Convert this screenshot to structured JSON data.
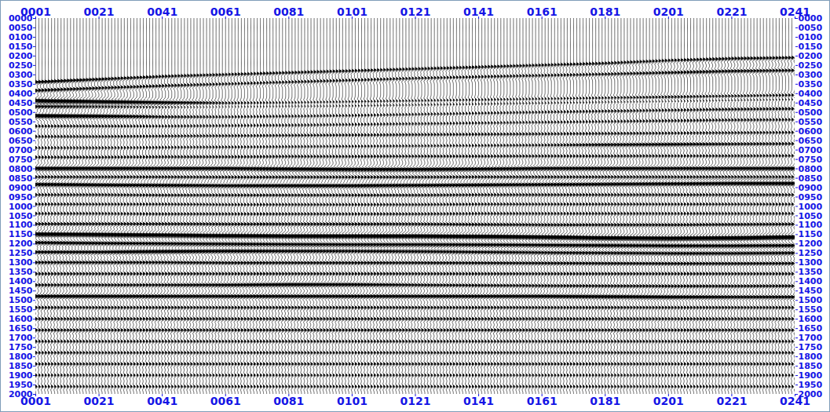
{
  "chart_data": {
    "type": "wiggle",
    "color": "#000000",
    "xlim": [
      1,
      241
    ],
    "ylim": [
      0,
      2000
    ],
    "xticks": [
      {
        "value": 1,
        "label": "0001"
      },
      {
        "value": 21,
        "label": "0021"
      },
      {
        "value": 41,
        "label": "0041"
      },
      {
        "value": 61,
        "label": "0061"
      },
      {
        "value": 81,
        "label": "0081"
      },
      {
        "value": 101,
        "label": "0101"
      },
      {
        "value": 121,
        "label": "0121"
      },
      {
        "value": 141,
        "label": "0141"
      },
      {
        "value": 161,
        "label": "0161"
      },
      {
        "value": 181,
        "label": "0181"
      },
      {
        "value": 201,
        "label": "0201"
      },
      {
        "value": 221,
        "label": "0221"
      },
      {
        "value": 241,
        "label": "0241"
      }
    ],
    "yticks": [
      {
        "value": 0,
        "label": "0000"
      },
      {
        "value": 50,
        "label": "0050"
      },
      {
        "value": 100,
        "label": "0100"
      },
      {
        "value": 150,
        "label": "0150"
      },
      {
        "value": 200,
        "label": "0200"
      },
      {
        "value": 250,
        "label": "0250"
      },
      {
        "value": 300,
        "label": "0300"
      },
      {
        "value": 350,
        "label": "0350"
      },
      {
        "value": 400,
        "label": "0400"
      },
      {
        "value": 450,
        "label": "0450"
      },
      {
        "value": 500,
        "label": "0500"
      },
      {
        "value": 550,
        "label": "0550"
      },
      {
        "value": 600,
        "label": "0600"
      },
      {
        "value": 650,
        "label": "0650"
      },
      {
        "value": 700,
        "label": "0700"
      },
      {
        "value": 750,
        "label": "0750"
      },
      {
        "value": 800,
        "label": "0800"
      },
      {
        "value": 850,
        "label": "0850"
      },
      {
        "value": 900,
        "label": "0900"
      },
      {
        "value": 950,
        "label": "0950"
      },
      {
        "value": 1000,
        "label": "1000"
      },
      {
        "value": 1050,
        "label": "1050"
      },
      {
        "value": 1100,
        "label": "1100"
      },
      {
        "value": 1150,
        "label": "1150"
      },
      {
        "value": 1200,
        "label": "1200"
      },
      {
        "value": 1250,
        "label": "1250"
      },
      {
        "value": 1300,
        "label": "1300"
      },
      {
        "value": 1350,
        "label": "1350"
      },
      {
        "value": 1400,
        "label": "1400"
      },
      {
        "value": 1450,
        "label": "1450"
      },
      {
        "value": 1500,
        "label": "1500"
      },
      {
        "value": 1550,
        "label": "1550"
      },
      {
        "value": 1600,
        "label": "1600"
      },
      {
        "value": 1650,
        "label": "1650"
      },
      {
        "value": 1700,
        "label": "1700"
      },
      {
        "value": 1750,
        "label": "1750"
      },
      {
        "value": 1800,
        "label": "1800"
      },
      {
        "value": 1850,
        "label": "1850"
      },
      {
        "value": 1900,
        "label": "1900"
      },
      {
        "value": 1950,
        "label": "1950"
      },
      {
        "value": 2000,
        "label": "2000"
      }
    ],
    "x": [
      1,
      21,
      41,
      61,
      81,
      101,
      121,
      141,
      161,
      181,
      201,
      221,
      241
    ],
    "first_arrival": [
      330,
      315,
      300,
      290,
      280,
      270,
      260,
      250,
      240,
      230,
      215,
      205,
      200
    ],
    "reflectors": [
      {
        "time": [
          340,
          325,
          310,
          300,
          290,
          280,
          270,
          260,
          250,
          240,
          225,
          215,
          210
        ],
        "amplitude": [
          1.2,
          1.0,
          0.8,
          0.8,
          0.8,
          0.8,
          0.8,
          0.8,
          0.8,
          0.8,
          0.8,
          0.9,
          0.9
        ]
      },
      {
        "time": [
          385,
          372,
          360,
          350,
          340,
          330,
          320,
          312,
          305,
          298,
          290,
          282,
          278
        ],
        "amplitude": [
          1.0,
          0.9,
          0.8,
          0.7,
          0.7,
          0.7,
          0.7,
          0.7,
          0.7,
          0.8,
          0.9,
          1.0,
          0.9
        ]
      },
      {
        "time": [
          440,
          445,
          450,
          452,
          450,
          445,
          440,
          435,
          430,
          425,
          420,
          415,
          410
        ],
        "amplitude": [
          2.6,
          2.3,
          1.6,
          0.9,
          0.7,
          0.7,
          0.7,
          0.7,
          0.7,
          0.8,
          1.0,
          0.9,
          0.9
        ]
      },
      {
        "time": [
          470,
          470,
          472,
          470,
          468,
          465,
          460,
          455,
          450,
          445,
          440,
          435,
          430
        ],
        "amplitude": [
          1.2,
          1.0,
          0.8,
          0.6,
          0.6,
          0.6,
          0.6,
          0.6,
          0.6,
          0.6,
          0.6,
          0.6,
          0.6
        ]
      },
      {
        "time": [
          520,
          522,
          525,
          525,
          522,
          518,
          512,
          506,
          500,
          495,
          490,
          485,
          482
        ],
        "amplitude": [
          2.2,
          1.6,
          0.8,
          0.6,
          0.6,
          0.6,
          0.6,
          0.6,
          0.6,
          0.7,
          0.7,
          0.8,
          0.8
        ]
      },
      {
        "time": [
          575,
          575,
          575,
          572,
          570,
          566,
          562,
          558,
          554,
          550,
          546,
          542,
          540
        ],
        "amplitude": [
          0.7,
          0.7,
          0.6,
          0.6,
          0.6,
          0.6,
          0.6,
          0.6,
          0.6,
          0.6,
          0.7,
          0.7,
          0.7
        ]
      },
      {
        "time": [
          630,
          630,
          628,
          626,
          624,
          622,
          620,
          618,
          616,
          614,
          612,
          610,
          608
        ],
        "amplitude": [
          0.7,
          0.7,
          0.7,
          0.7,
          0.7,
          0.7,
          0.7,
          0.7,
          0.7,
          0.7,
          0.7,
          0.7,
          0.7
        ]
      },
      {
        "time": [
          690,
          690,
          688,
          686,
          684,
          682,
          680,
          678,
          676,
          674,
          672,
          670,
          668
        ],
        "amplitude": [
          0.6,
          0.6,
          0.6,
          0.6,
          0.6,
          0.6,
          0.6,
          0.6,
          0.7,
          1.1,
          1.2,
          0.9,
          0.8
        ]
      },
      {
        "time": [
          740,
          740,
          738,
          738,
          736,
          736,
          735,
          735,
          734,
          734,
          733,
          733,
          732
        ],
        "amplitude": [
          0.7,
          0.7,
          0.7,
          0.7,
          0.7,
          0.7,
          0.7,
          0.7,
          0.7,
          0.7,
          0.7,
          0.7,
          0.7
        ]
      },
      {
        "time": [
          800,
          800,
          800,
          800,
          803,
          805,
          805,
          803,
          800,
          800,
          800,
          800,
          800
        ],
        "amplitude": [
          2.0,
          1.8,
          1.6,
          1.6,
          1.8,
          1.8,
          1.7,
          1.6,
          1.5,
          1.5,
          1.4,
          1.5,
          1.6
        ]
      },
      {
        "time": [
          845,
          845,
          845,
          846,
          846,
          846,
          846,
          845,
          845,
          845,
          845,
          845,
          845
        ],
        "amplitude": [
          0.8,
          0.8,
          0.8,
          0.8,
          0.8,
          0.8,
          0.8,
          0.8,
          0.8,
          0.8,
          0.8,
          0.8,
          0.8
        ]
      },
      {
        "time": [
          885,
          888,
          890,
          892,
          892,
          892,
          890,
          888,
          886,
          884,
          882,
          880,
          880
        ],
        "amplitude": [
          1.6,
          1.5,
          1.5,
          1.4,
          1.6,
          1.6,
          1.5,
          1.4,
          1.3,
          1.3,
          1.4,
          1.6,
          1.8
        ]
      },
      {
        "time": [
          940,
          940,
          942,
          942,
          942,
          942,
          942,
          940,
          940,
          940,
          940,
          940,
          940
        ],
        "amplitude": [
          0.8,
          0.8,
          0.8,
          0.8,
          0.8,
          0.8,
          0.8,
          0.8,
          0.8,
          0.8,
          0.8,
          0.8,
          0.8
        ]
      },
      {
        "time": [
          990,
          990,
          990,
          992,
          992,
          992,
          992,
          990,
          990,
          990,
          990,
          990,
          990
        ],
        "amplitude": [
          0.7,
          0.7,
          0.7,
          0.7,
          0.7,
          0.7,
          0.7,
          0.7,
          0.7,
          0.7,
          0.7,
          0.7,
          0.7
        ]
      },
      {
        "time": [
          1040,
          1040,
          1042,
          1042,
          1042,
          1042,
          1042,
          1040,
          1040,
          1040,
          1040,
          1040,
          1040
        ],
        "amplitude": [
          0.7,
          0.7,
          0.7,
          0.7,
          0.7,
          0.7,
          0.7,
          0.7,
          0.7,
          0.7,
          0.7,
          0.7,
          0.7
        ]
      },
      {
        "time": [
          1095,
          1095,
          1095,
          1096,
          1096,
          1096,
          1096,
          1098,
          1100,
          1100,
          1100,
          1098,
          1096
        ],
        "amplitude": [
          0.9,
          0.9,
          0.9,
          0.9,
          0.9,
          0.9,
          0.9,
          0.9,
          0.9,
          0.9,
          0.9,
          0.9,
          0.9
        ]
      },
      {
        "time": [
          1150,
          1152,
          1155,
          1158,
          1160,
          1160,
          1160,
          1162,
          1165,
          1170,
          1172,
          1170,
          1165
        ],
        "amplitude": [
          2.6,
          2.6,
          2.5,
          2.4,
          2.4,
          2.5,
          2.5,
          2.4,
          2.4,
          2.5,
          2.6,
          2.6,
          2.6
        ]
      },
      {
        "time": [
          1195,
          1198,
          1200,
          1202,
          1204,
          1205,
          1205,
          1206,
          1208,
          1210,
          1212,
          1212,
          1210
        ],
        "amplitude": [
          1.3,
          1.3,
          1.3,
          1.3,
          1.3,
          1.3,
          1.3,
          1.3,
          1.3,
          1.3,
          1.3,
          1.3,
          1.3
        ]
      },
      {
        "time": [
          1245,
          1245,
          1242,
          1240,
          1240,
          1240,
          1242,
          1245,
          1248,
          1250,
          1252,
          1252,
          1250
        ],
        "amplitude": [
          1.2,
          1.3,
          1.6,
          1.4,
          1.2,
          1.1,
          1.1,
          1.1,
          1.1,
          1.1,
          1.2,
          1.2,
          1.2
        ]
      },
      {
        "time": [
          1300,
          1300,
          1300,
          1302,
          1302,
          1302,
          1302,
          1303,
          1304,
          1305,
          1306,
          1306,
          1305
        ],
        "amplitude": [
          1.0,
          1.0,
          1.0,
          1.0,
          1.0,
          1.0,
          1.0,
          1.0,
          1.0,
          1.0,
          1.0,
          1.0,
          1.0
        ]
      },
      {
        "time": [
          1360,
          1360,
          1360,
          1360,
          1360,
          1360,
          1360,
          1360,
          1360,
          1360,
          1360,
          1360,
          1360
        ],
        "amplitude": [
          0.8,
          0.8,
          0.8,
          0.8,
          0.8,
          0.8,
          0.8,
          0.8,
          0.8,
          0.8,
          0.8,
          0.8,
          0.8
        ]
      },
      {
        "time": [
          1420,
          1420,
          1420,
          1420,
          1418,
          1418,
          1420,
          1422,
          1424,
          1425,
          1426,
          1426,
          1425
        ],
        "amplitude": [
          0.9,
          0.9,
          1.0,
          1.3,
          1.6,
          1.4,
          1.0,
          0.9,
          0.9,
          0.9,
          0.9,
          0.9,
          0.9
        ]
      },
      {
        "time": [
          1480,
          1480,
          1480,
          1480,
          1480,
          1480,
          1480,
          1480,
          1480,
          1482,
          1484,
          1484,
          1484
        ],
        "amplitude": [
          1.4,
          1.4,
          1.3,
          1.3,
          1.3,
          1.3,
          1.3,
          1.3,
          1.4,
          1.6,
          1.6,
          1.2,
          1.2
        ]
      },
      {
        "time": [
          1540,
          1540,
          1540,
          1540,
          1540,
          1540,
          1540,
          1540,
          1540,
          1540,
          1540,
          1540,
          1540
        ],
        "amplitude": [
          0.8,
          0.8,
          0.8,
          0.8,
          0.8,
          0.8,
          0.8,
          0.8,
          0.8,
          0.8,
          0.8,
          0.8,
          0.8
        ]
      },
      {
        "time": [
          1600,
          1600,
          1600,
          1600,
          1600,
          1600,
          1600,
          1600,
          1600,
          1600,
          1600,
          1600,
          1600
        ],
        "amplitude": [
          0.8,
          0.8,
          0.8,
          0.8,
          0.8,
          0.8,
          0.8,
          0.8,
          0.8,
          0.8,
          0.8,
          0.8,
          0.8
        ]
      },
      {
        "time": [
          1660,
          1660,
          1660,
          1660,
          1660,
          1660,
          1660,
          1660,
          1660,
          1660,
          1660,
          1660,
          1660
        ],
        "amplitude": [
          0.8,
          0.8,
          0.8,
          0.8,
          0.8,
          0.8,
          0.8,
          0.8,
          0.8,
          0.8,
          0.8,
          0.8,
          0.8
        ]
      },
      {
        "time": [
          1720,
          1720,
          1720,
          1720,
          1720,
          1720,
          1720,
          1720,
          1720,
          1720,
          1720,
          1720,
          1720
        ],
        "amplitude": [
          0.7,
          0.7,
          0.7,
          0.7,
          0.7,
          0.7,
          0.7,
          0.7,
          0.7,
          0.7,
          0.7,
          0.7,
          0.7
        ]
      },
      {
        "time": [
          1780,
          1780,
          1780,
          1780,
          1780,
          1780,
          1780,
          1780,
          1780,
          1780,
          1780,
          1780,
          1780
        ],
        "amplitude": [
          0.7,
          0.7,
          0.7,
          0.7,
          0.7,
          0.7,
          0.7,
          0.7,
          0.7,
          0.7,
          0.7,
          0.7,
          0.7
        ]
      },
      {
        "time": [
          1840,
          1840,
          1840,
          1840,
          1840,
          1840,
          1840,
          1840,
          1840,
          1840,
          1840,
          1840,
          1840
        ],
        "amplitude": [
          0.7,
          0.7,
          0.7,
          0.7,
          0.7,
          0.7,
          0.7,
          0.7,
          0.7,
          0.7,
          0.7,
          0.7,
          0.7
        ]
      },
      {
        "time": [
          1900,
          1900,
          1900,
          1900,
          1900,
          1900,
          1900,
          1900,
          1900,
          1900,
          1900,
          1900,
          1900
        ],
        "amplitude": [
          0.6,
          0.6,
          0.6,
          0.6,
          0.6,
          0.6,
          0.6,
          0.6,
          0.6,
          0.6,
          0.6,
          0.6,
          0.6
        ]
      },
      {
        "time": [
          1960,
          1960,
          1960,
          1960,
          1960,
          1960,
          1960,
          1960,
          1960,
          1960,
          1960,
          1960,
          1960
        ],
        "amplitude": [
          0.6,
          0.6,
          0.6,
          0.6,
          0.6,
          0.6,
          0.6,
          0.6,
          0.6,
          0.6,
          0.6,
          0.6,
          0.6
        ]
      }
    ]
  }
}
